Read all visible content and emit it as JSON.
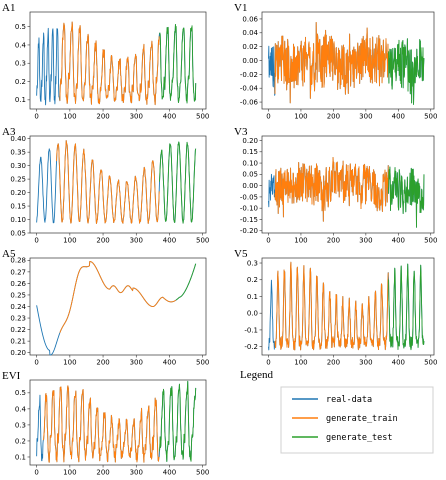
{
  "figure": {
    "legend_title": "Legend"
  },
  "legend": {
    "placement": "bottom-right",
    "items": [
      {
        "name": "real-data",
        "color": "#1f77b4"
      },
      {
        "name": "generate_train",
        "color": "#ff7f0e"
      },
      {
        "name": "generate_test",
        "color": "#2ca02c"
      }
    ]
  },
  "chart_data": [
    {
      "type": "line",
      "title": "A1",
      "xlim": [
        -20,
        510
      ],
      "ylim": [
        0.05,
        0.58
      ],
      "xticks": [
        0,
        100,
        200,
        300,
        400,
        500
      ],
      "yticks": [
        0.1,
        0.2,
        0.3,
        0.4,
        0.5
      ],
      "ytick_format": "0.1",
      "signal": {
        "kind": "osc",
        "n": 480,
        "train": [
          70,
          370
        ],
        "periods": [
          14,
          24,
          24
        ],
        "base": 0.1,
        "amp": 0.4,
        "noise": 0.03,
        "seed": 11
      },
      "series": [
        {
          "name": "real-data",
          "x": [
            0,
            480
          ]
        },
        {
          "name": "generate_train",
          "x": [
            70,
            370
          ]
        },
        {
          "name": "generate_test",
          "x": [
            370,
            480
          ]
        }
      ]
    },
    {
      "type": "line",
      "title": "V1",
      "xlim": [
        -20,
        510
      ],
      "ylim": [
        -0.07,
        0.07
      ],
      "xticks": [
        0,
        100,
        200,
        300,
        400,
        500
      ],
      "yticks": [
        -0.06,
        -0.04,
        -0.02,
        0.0,
        0.02,
        0.04,
        0.06
      ],
      "ytick_format": "0.01",
      "signal": {
        "kind": "noise",
        "n": 480,
        "train": [
          20,
          370
        ],
        "base": 0,
        "amp": 0.06,
        "noise": 0.035,
        "seed": 23
      },
      "series": [
        {
          "name": "real-data",
          "x": [
            0,
            480
          ]
        },
        {
          "name": "generate_train",
          "x": [
            20,
            370
          ]
        },
        {
          "name": "generate_test",
          "x": [
            370,
            480
          ]
        }
      ]
    },
    {
      "type": "line",
      "title": "A3",
      "xlim": [
        -20,
        510
      ],
      "ylim": [
        0.05,
        0.41
      ],
      "xticks": [
        0,
        100,
        200,
        300,
        400,
        500
      ],
      "yticks": [
        0.05,
        0.1,
        0.15,
        0.2,
        0.25,
        0.3,
        0.35,
        0.4
      ],
      "ytick_format": "0.01",
      "signal": {
        "kind": "sine",
        "n": 480,
        "train": [
          60,
          370
        ],
        "periods": [
          26,
          26,
          26
        ],
        "base": 0.09,
        "amp": 0.3,
        "noise": 0.008,
        "seed": 5
      },
      "series": [
        {
          "name": "real-data",
          "x": [
            0,
            480
          ]
        },
        {
          "name": "generate_train",
          "x": [
            60,
            370
          ]
        },
        {
          "name": "generate_test",
          "x": [
            370,
            480
          ]
        }
      ]
    },
    {
      "type": "line",
      "title": "V3",
      "xlim": [
        -20,
        510
      ],
      "ylim": [
        -0.21,
        0.22
      ],
      "xticks": [
        0,
        100,
        200,
        300,
        400,
        500
      ],
      "yticks": [
        -0.2,
        -0.15,
        -0.1,
        -0.05,
        0.0,
        0.05,
        0.1,
        0.15,
        0.2
      ],
      "ytick_format": "0.01",
      "signal": {
        "kind": "noise",
        "n": 480,
        "train": [
          20,
          370
        ],
        "base": 0,
        "amp": 0.16,
        "noise": 0.09,
        "seed": 37
      },
      "series": [
        {
          "name": "real-data",
          "x": [
            0,
            480
          ]
        },
        {
          "name": "generate_train",
          "x": [
            20,
            370
          ]
        },
        {
          "name": "generate_test",
          "x": [
            370,
            480
          ]
        }
      ]
    },
    {
      "type": "line",
      "title": "A5",
      "xlim": [
        -20,
        510
      ],
      "ylim": [
        0.198,
        0.282
      ],
      "xticks": [
        0,
        100,
        200,
        300,
        400,
        500
      ],
      "yticks": [
        0.2,
        0.21,
        0.22,
        0.23,
        0.24,
        0.25,
        0.26,
        0.27,
        0.28
      ],
      "ytick_format": "0.01",
      "signal": {
        "kind": "smooth",
        "n": 480,
        "train": [
          70,
          420
        ],
        "seed": 1
      },
      "series": [
        {
          "name": "real-data",
          "x": [
            0,
            480
          ]
        },
        {
          "name": "generate_train",
          "x": [
            70,
            420
          ]
        },
        {
          "name": "generate_test",
          "x": [
            420,
            480
          ]
        }
      ]
    },
    {
      "type": "line",
      "title": "V5",
      "xlim": [
        -20,
        510
      ],
      "ylim": [
        -0.25,
        0.33
      ],
      "xticks": [
        0,
        100,
        200,
        300,
        400,
        500
      ],
      "yticks": [
        -0.2,
        -0.1,
        0.0,
        0.1,
        0.2,
        0.3
      ],
      "ytick_format": "0.1",
      "signal": {
        "kind": "spike",
        "n": 480,
        "train": [
          20,
          370
        ],
        "periods": [
          20,
          20,
          20
        ],
        "base": -0.18,
        "amp": 0.46,
        "noise": 0.04,
        "seed": 19
      },
      "series": [
        {
          "name": "real-data",
          "x": [
            0,
            480
          ]
        },
        {
          "name": "generate_train",
          "x": [
            20,
            370
          ]
        },
        {
          "name": "generate_test",
          "x": [
            370,
            480
          ]
        }
      ]
    },
    {
      "type": "line",
      "title": "EVI",
      "xlim": [
        -20,
        510
      ],
      "ylim": [
        0.05,
        0.58
      ],
      "xticks": [
        0,
        100,
        200,
        300,
        400,
        500
      ],
      "yticks": [
        0.1,
        0.2,
        0.3,
        0.4,
        0.5
      ],
      "ytick_format": "0.1",
      "signal": {
        "kind": "osc",
        "n": 480,
        "train": [
          20,
          370
        ],
        "periods": [
          18,
          22,
          24
        ],
        "base": 0.1,
        "amp": 0.42,
        "noise": 0.035,
        "seed": 29
      },
      "series": [
        {
          "name": "real-data",
          "x": [
            0,
            480
          ]
        },
        {
          "name": "generate_train",
          "x": [
            20,
            370
          ]
        },
        {
          "name": "generate_test",
          "x": [
            370,
            480
          ]
        }
      ]
    }
  ]
}
